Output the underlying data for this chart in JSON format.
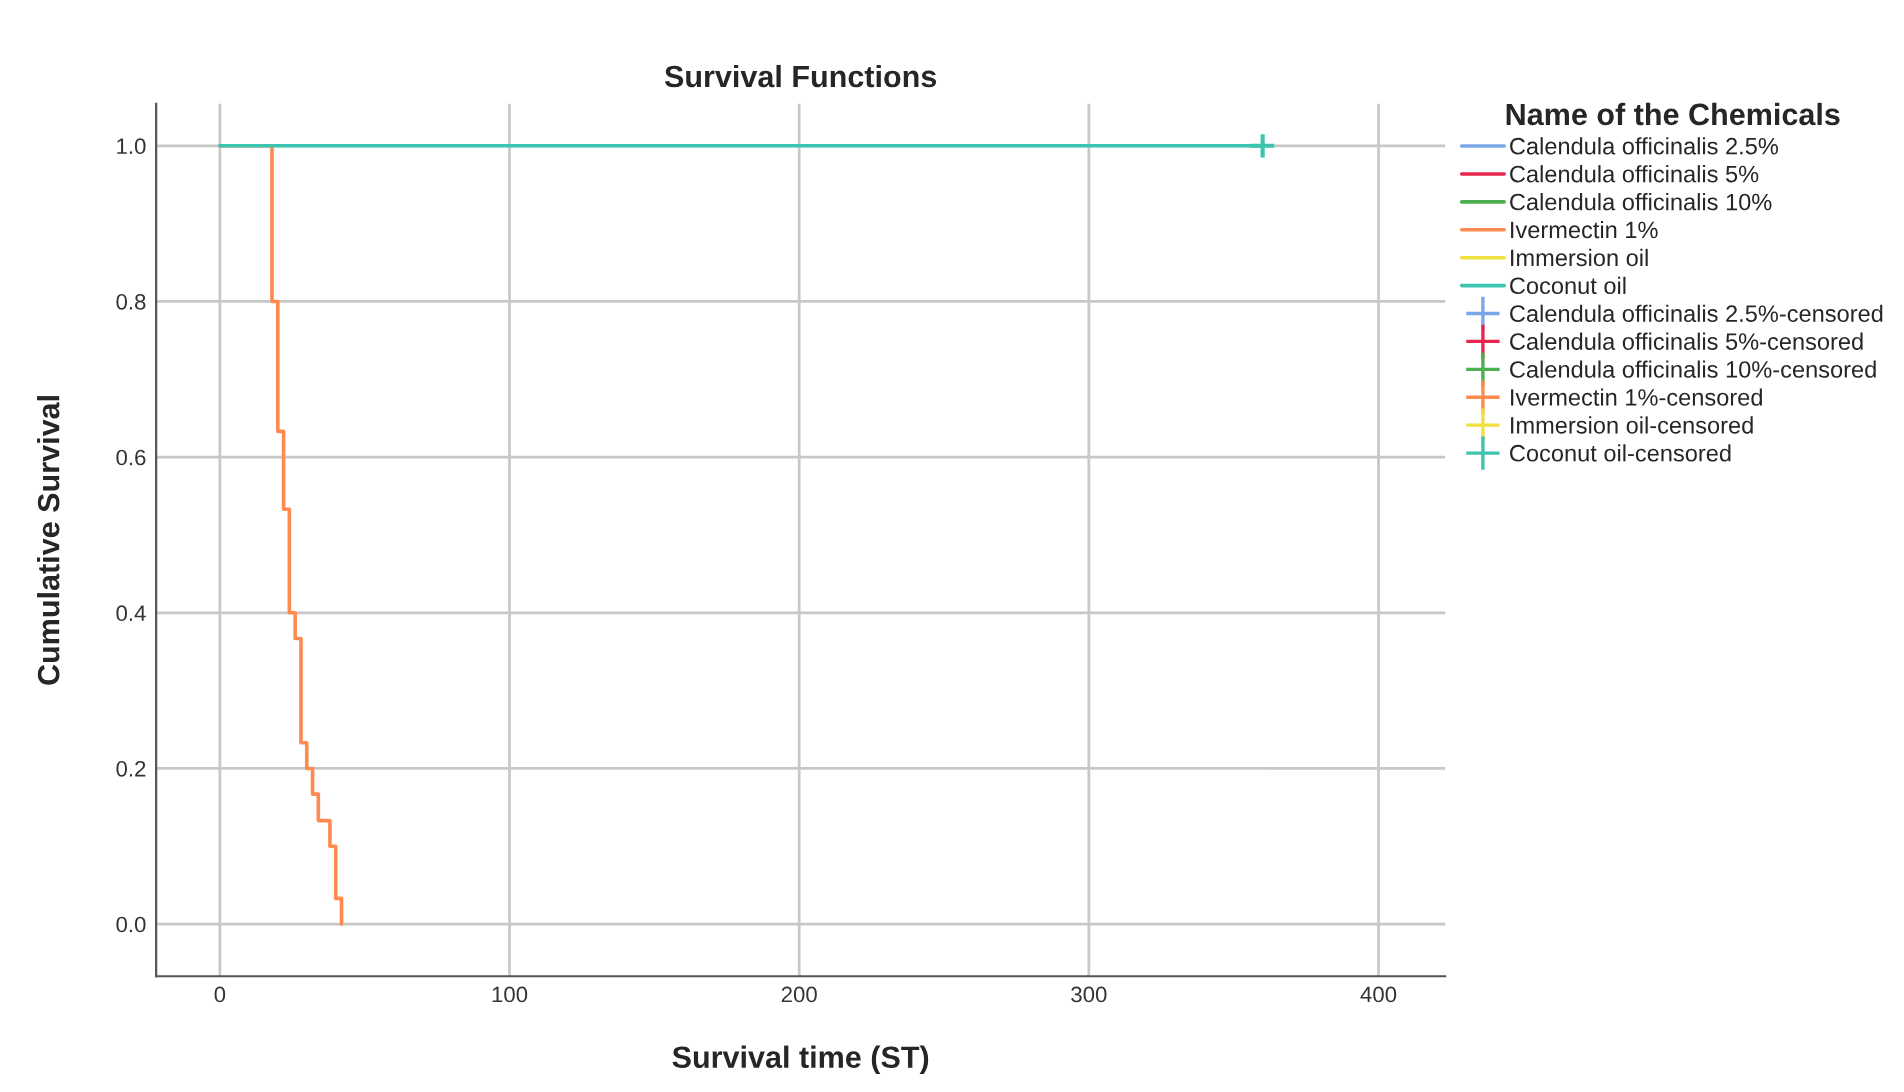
{
  "chart_data": {
    "type": "step",
    "title": "Survival Functions",
    "xlabel": "Survival time (ST)",
    "ylabel": "Cumulative Survival",
    "legend_title": "Name of the Chemicals",
    "series": [
      {
        "name": "Calendula officinalis 2.5%",
        "color": "#7aa6e8"
      },
      {
        "name": "Calendula officinalis 5%",
        "color": "#e8264d"
      },
      {
        "name": "Calendula officinalis 10%",
        "color": "#4caf50"
      },
      {
        "name": "Ivermectin 1%",
        "color": "#ff8a50",
        "x": [
          0,
          18,
          20,
          22,
          24,
          26,
          28,
          30,
          32,
          34,
          38,
          40,
          42
        ],
        "values": [
          1.0,
          0.8,
          0.633,
          0.533,
          0.4,
          0.367,
          0.233,
          0.2,
          0.167,
          0.133,
          0.1,
          0.033,
          0.0
        ]
      },
      {
        "name": "Immersion oil",
        "color": "#f0e040"
      },
      {
        "name": "Coconut oil",
        "color": "#3cc4b0",
        "x": [
          0,
          360
        ],
        "values": [
          1.0,
          1.0
        ]
      },
      {
        "name": "Calendula officinalis 2.5%-censored",
        "color": "#7aa6e8",
        "type": "scatter",
        "marker": "cross"
      },
      {
        "name": "Calendula officinalis 5%-censored",
        "color": "#e8264d",
        "type": "scatter",
        "marker": "cross"
      },
      {
        "name": "Calendula officinalis 10%-censored",
        "color": "#4caf50",
        "type": "scatter",
        "marker": "cross"
      },
      {
        "name": "Ivermectin 1%-censored",
        "color": "#ff8a50",
        "type": "scatter",
        "marker": "cross"
      },
      {
        "name": "Immersion oil-censored",
        "color": "#f0e040",
        "type": "scatter",
        "marker": "cross"
      },
      {
        "name": "Coconut oil-censored",
        "color": "#3cc4b0",
        "type": "scatter",
        "marker": "cross",
        "x": [
          360
        ],
        "values": [
          1.0
        ]
      }
    ],
    "xlim": [
      -22,
      423
    ],
    "xticks": [
      0,
      100,
      200,
      300,
      400
    ],
    "ylim": [
      -0.067,
      1.054
    ],
    "yticks": [
      {
        "value": 0,
        "label": "0.0"
      },
      {
        "value": 0.2,
        "label": "0.2"
      },
      {
        "value": 0.4,
        "label": "0.4"
      },
      {
        "value": 0.6,
        "label": "0.6"
      },
      {
        "value": 0.8,
        "label": "0.8"
      },
      {
        "value": 1.0,
        "label": "1.0"
      }
    ],
    "grid": true,
    "legend": "top right"
  }
}
